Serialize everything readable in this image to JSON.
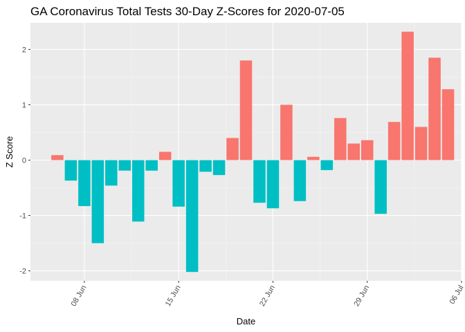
{
  "chart_data": {
    "type": "bar",
    "title": "GA Coronavirus Total Tests 30-Day Z-Scores for 2020-07-05",
    "xlabel": "Date",
    "ylabel": "Z Score",
    "x": [
      "2020-06-06",
      "2020-06-07",
      "2020-06-08",
      "2020-06-09",
      "2020-06-10",
      "2020-06-11",
      "2020-06-12",
      "2020-06-13",
      "2020-06-14",
      "2020-06-15",
      "2020-06-16",
      "2020-06-17",
      "2020-06-18",
      "2020-06-19",
      "2020-06-20",
      "2020-06-21",
      "2020-06-22",
      "2020-06-23",
      "2020-06-24",
      "2020-06-25",
      "2020-06-26",
      "2020-06-27",
      "2020-06-28",
      "2020-06-29",
      "2020-06-30",
      "2020-07-01",
      "2020-07-02",
      "2020-07-03",
      "2020-07-04",
      "2020-07-05"
    ],
    "values": [
      0.09,
      -0.37,
      -0.83,
      -1.5,
      -0.46,
      -0.19,
      -1.11,
      -0.19,
      0.15,
      -0.84,
      -2.02,
      -0.21,
      -0.27,
      0.4,
      1.8,
      -0.77,
      -0.87,
      1.0,
      -0.74,
      0.06,
      -0.18,
      0.76,
      0.3,
      0.36,
      -0.97,
      0.69,
      2.32,
      0.6,
      1.85,
      1.28
    ],
    "x_ticks": [
      "08 Jun",
      "15 Jun",
      "22 Jun",
      "29 Jun",
      "06 Jul"
    ],
    "y_ticks": [
      -2,
      -1,
      0,
      1,
      2
    ],
    "ylim": [
      -2.18,
      2.48
    ],
    "xlim": [
      "2020-06-04",
      "2020-07-06"
    ],
    "grid": true,
    "colors": {
      "positive": "#F8766D",
      "negative": "#00BFC4",
      "panel": "#EBEBEB",
      "grid_major": "#FFFFFF",
      "grid_minor": "#F5F5F5"
    }
  }
}
